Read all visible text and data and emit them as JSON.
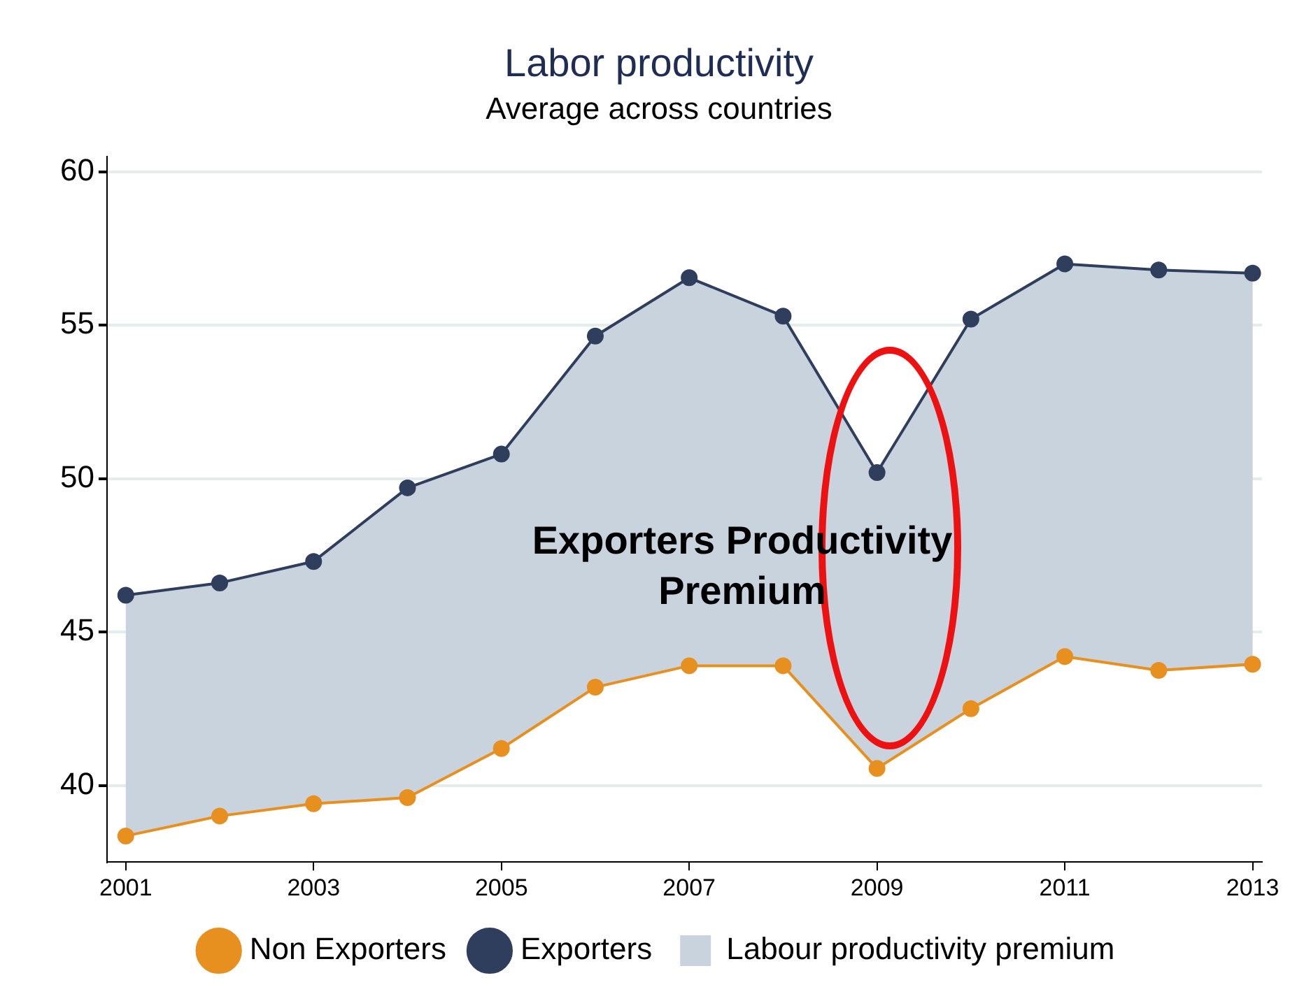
{
  "chart_data": {
    "type": "line",
    "title": "Labor productivity",
    "subtitle": "Average across countries",
    "x": [
      2001,
      2002,
      2003,
      2004,
      2005,
      2006,
      2007,
      2008,
      2009,
      2010,
      2011,
      2012,
      2013
    ],
    "series": [
      {
        "name": "Non Exporters",
        "color": "#e8901f",
        "values": [
          38.35,
          39.0,
          39.4,
          39.6,
          41.2,
          43.2,
          43.9,
          43.9,
          40.55,
          42.5,
          44.2,
          43.75,
          43.95
        ]
      },
      {
        "name": "Exporters",
        "color": "#2e3e5c",
        "values": [
          46.2,
          46.6,
          47.3,
          49.7,
          50.8,
          54.65,
          56.55,
          55.3,
          50.2,
          55.2,
          57.0,
          56.8,
          56.7
        ]
      },
      {
        "name": "Labour productivity premium",
        "type": "area",
        "color": "#c9d3de",
        "values": [
          null,
          null,
          null,
          null,
          null,
          null,
          null,
          null,
          null,
          null,
          null,
          null,
          null
        ],
        "lower": [
          38.35,
          39.0,
          39.4,
          39.6,
          41.2,
          43.2,
          43.9,
          43.9,
          40.55,
          42.5,
          44.2,
          43.75,
          43.95
        ],
        "upper": [
          46.2,
          46.6,
          47.3,
          49.7,
          50.8,
          54.65,
          56.55,
          55.3,
          50.2,
          55.2,
          57.0,
          56.8,
          56.7
        ]
      }
    ],
    "annotations": [
      "Exporters Productivity Premium"
    ],
    "xlim": [
      2000.8,
      2013.1
    ],
    "xticks": [
      2001,
      2003,
      2005,
      2007,
      2009,
      2011,
      2013
    ],
    "ylim": [
      37.5,
      60.5
    ],
    "yticks": [
      40,
      45,
      50,
      55,
      60
    ],
    "grid": "y",
    "legend": "bottom",
    "marker": "circle",
    "line_style": "solid"
  }
}
